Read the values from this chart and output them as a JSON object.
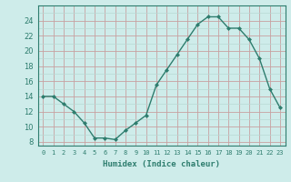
{
  "x": [
    0,
    1,
    2,
    3,
    4,
    5,
    6,
    7,
    8,
    9,
    10,
    11,
    12,
    13,
    14,
    15,
    16,
    17,
    18,
    19,
    20,
    21,
    22,
    23
  ],
  "y": [
    14,
    14,
    13,
    12,
    10.5,
    8.5,
    8.5,
    8.3,
    9.5,
    10.5,
    11.5,
    15.5,
    17.5,
    19.5,
    21.5,
    23.5,
    24.5,
    24.5,
    23,
    23,
    21.5,
    19,
    15,
    12.5
  ],
  "xlabel": "Humidex (Indice chaleur)",
  "ylim": [
    7.5,
    26
  ],
  "xlim": [
    -0.5,
    23.5
  ],
  "yticks": [
    8,
    10,
    12,
    14,
    16,
    18,
    20,
    22,
    24
  ],
  "xtick_labels": [
    "0",
    "1",
    "2",
    "3",
    "4",
    "5",
    "6",
    "7",
    "8",
    "9",
    "10",
    "11",
    "12",
    "13",
    "14",
    "15",
    "16",
    "17",
    "18",
    "19",
    "20",
    "21",
    "22",
    "23"
  ],
  "line_color": "#2e7d6e",
  "marker": "D",
  "marker_size": 2.0,
  "bg_color": "#ceecea",
  "grid_color_major": "#c8a0a0",
  "grid_color_minor": "#b8d8d4",
  "line_width": 1.0
}
